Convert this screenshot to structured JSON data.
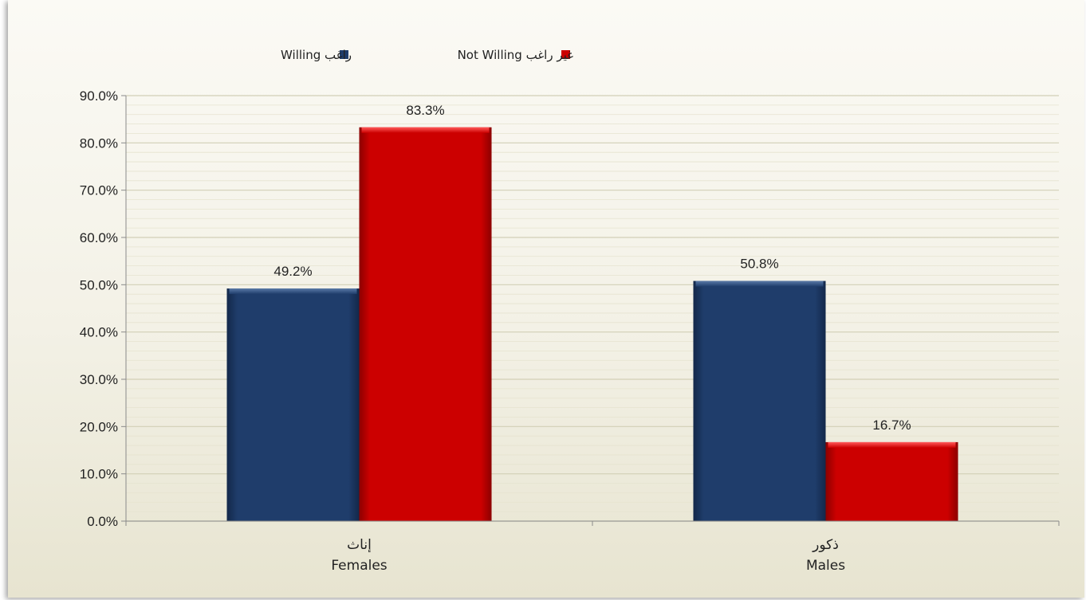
{
  "chart_data": {
    "type": "bar",
    "categories": [
      {
        "ar": "إناث",
        "en": "Females"
      },
      {
        "ar": "ذكور",
        "en": "Males"
      }
    ],
    "series": [
      {
        "name": "راغب Willing",
        "color": "#1f3d6b",
        "values": [
          49.2,
          50.8
        ]
      },
      {
        "name": "غير راغب Not Willing",
        "color": "#cc0000",
        "values": [
          83.3,
          16.7
        ]
      }
    ],
    "data_labels": [
      [
        "49.2%",
        "50.8%"
      ],
      [
        "83.3%",
        "16.7%"
      ]
    ],
    "ylim": [
      0,
      90
    ],
    "yticks": [
      "0.0%",
      "10.0%",
      "20.0%",
      "30.0%",
      "40.0%",
      "50.0%",
      "60.0%",
      "70.0%",
      "80.0%",
      "90.0%"
    ],
    "title": "",
    "xlabel": "",
    "ylabel": "",
    "legend": "top-center",
    "grid": true
  }
}
